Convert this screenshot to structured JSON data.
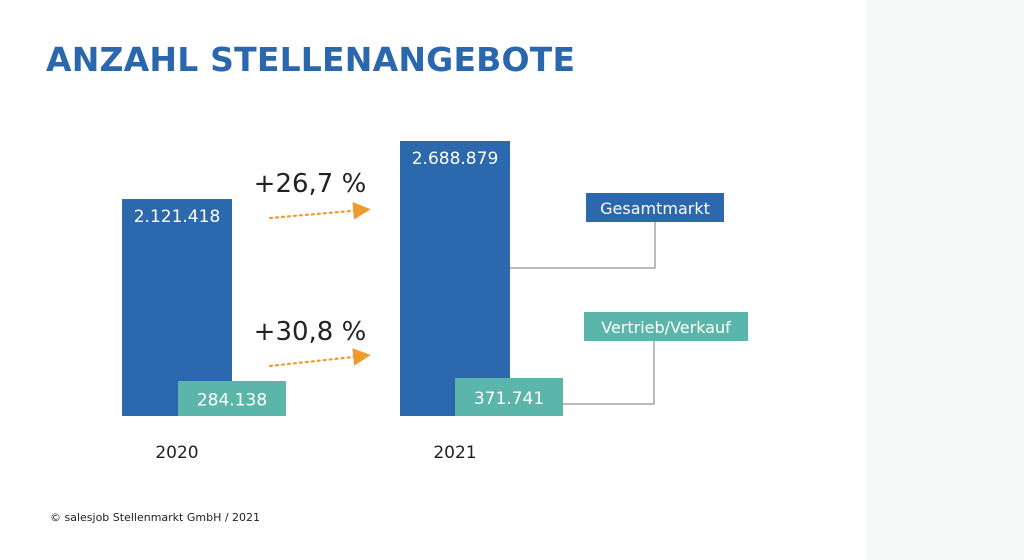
{
  "title": "ANZAHL STELLENANGEBOTE",
  "copyright": "© salesjob Stellenmarkt GmbH / 2021",
  "colors": {
    "title": "#2a67ad",
    "total": "#2b68ae",
    "sales": "#5bb5aa",
    "arrow": "#ef9a2f",
    "connector": "#777777"
  },
  "chart_data": {
    "type": "bar",
    "categories": [
      "2020",
      "2021"
    ],
    "series": [
      {
        "name": "Gesamtmarkt",
        "values": [
          2121418,
          2688879
        ],
        "labels": [
          "2.121.418",
          "2.688.879"
        ]
      },
      {
        "name": "Vertrieb/Verkauf",
        "values": [
          284138,
          371741
        ],
        "labels": [
          "284.138",
          "371.741"
        ]
      }
    ],
    "growth": [
      {
        "series": "Gesamtmarkt",
        "label": "+26,7 %"
      },
      {
        "series": "Vertrieb/Verkauf",
        "label": "+30,8 %"
      }
    ],
    "ylim": [
      0,
      2688879
    ],
    "grid": false,
    "legend": "right"
  }
}
